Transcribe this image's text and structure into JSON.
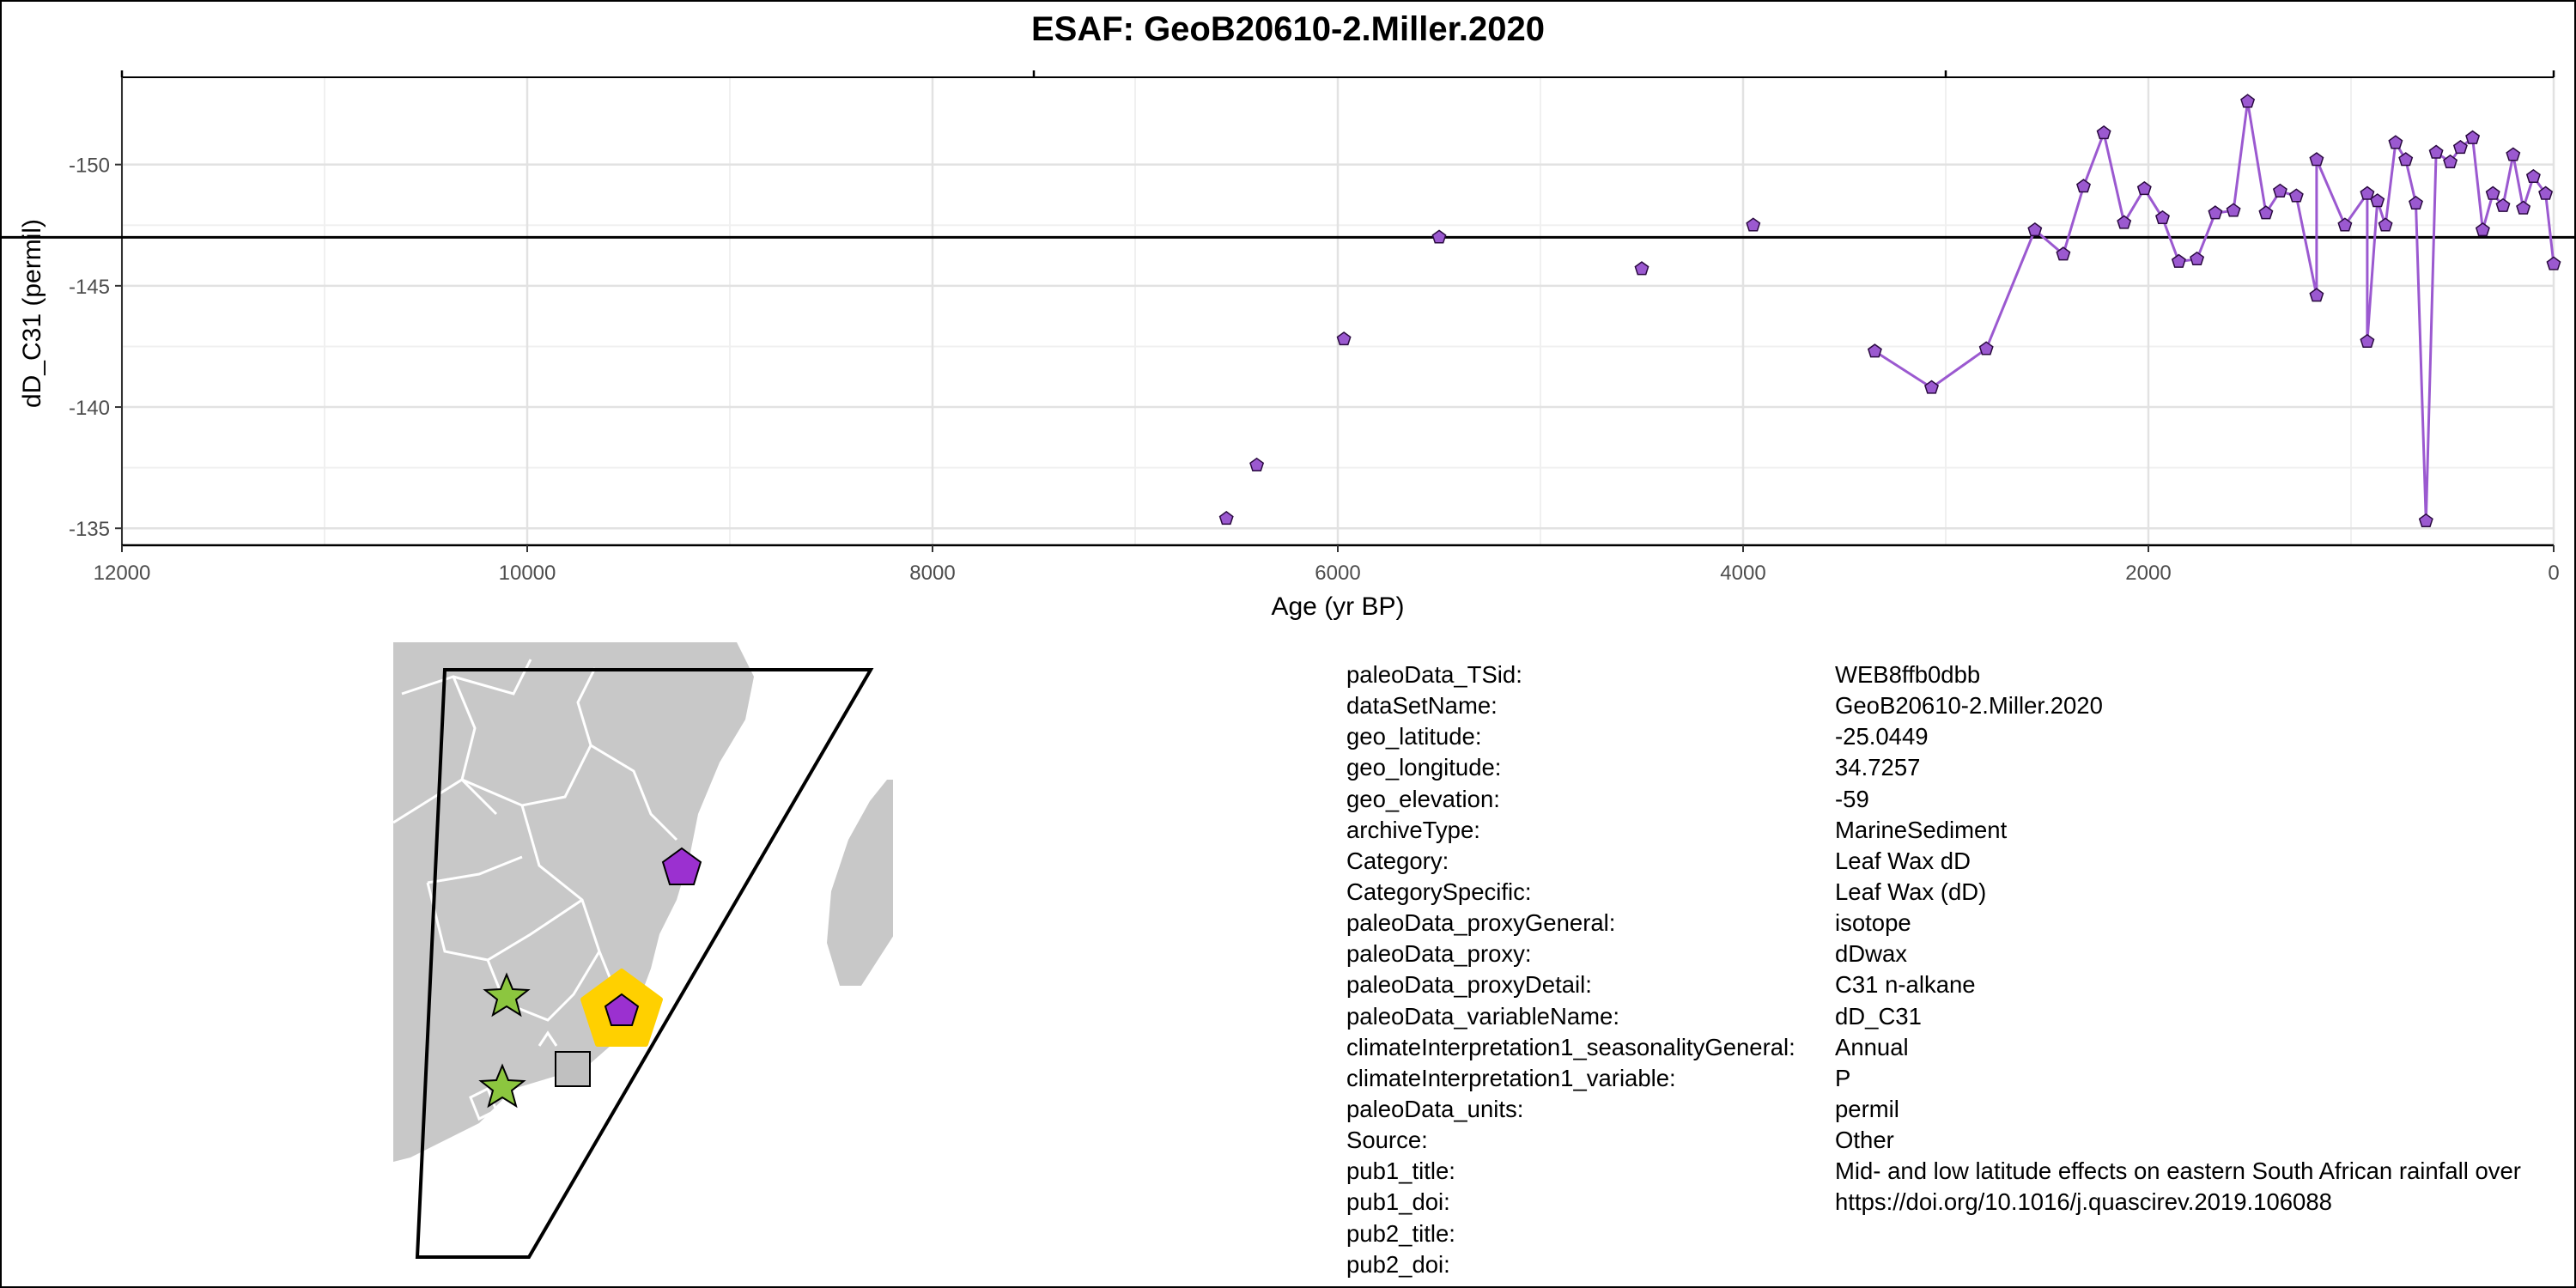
{
  "chart_data": {
    "type": "line",
    "title": "ESAF: GeoB20610-2.Miller.2020",
    "xlabel": "Age (yr BP)",
    "ylabel": "dD_C31 (permil)",
    "xlim": [
      12000,
      0
    ],
    "ylim": [
      -134.3,
      -153.6
    ],
    "x_reversed": true,
    "y_reversed": true,
    "x_ticks": [
      12000,
      10000,
      8000,
      6000,
      4000,
      2000,
      0
    ],
    "y_ticks": [
      -150,
      -145,
      -140,
      -135
    ],
    "reference_line": -147.0,
    "grid": true,
    "marker": "pentagon",
    "color": "#9b59d0",
    "series": [
      {
        "connected": false,
        "points": [
          {
            "x": 6550,
            "y": -135.4
          },
          {
            "x": 6400,
            "y": -137.6
          },
          {
            "x": 5970,
            "y": -142.8
          },
          {
            "x": 5500,
            "y": -147.0
          },
          {
            "x": 4500,
            "y": -145.7
          },
          {
            "x": 3950,
            "y": -147.5
          }
        ]
      },
      {
        "connected": true,
        "points": [
          {
            "x": 3350,
            "y": -142.3
          },
          {
            "x": 3070,
            "y": -140.8
          },
          {
            "x": 2800,
            "y": -142.4
          },
          {
            "x": 2560,
            "y": -147.3
          },
          {
            "x": 2420,
            "y": -146.3
          },
          {
            "x": 2320,
            "y": -149.1
          },
          {
            "x": 2220,
            "y": -151.3
          },
          {
            "x": 2120,
            "y": -147.6
          },
          {
            "x": 2020,
            "y": -149.0
          },
          {
            "x": 1930,
            "y": -147.8
          },
          {
            "x": 1850,
            "y": -146.0
          },
          {
            "x": 1760,
            "y": -146.1
          },
          {
            "x": 1670,
            "y": -148.0
          },
          {
            "x": 1580,
            "y": -148.1
          },
          {
            "x": 1510,
            "y": -152.6
          },
          {
            "x": 1420,
            "y": -148.0
          },
          {
            "x": 1350,
            "y": -148.9
          },
          {
            "x": 1270,
            "y": -148.7
          },
          {
            "x": 1170,
            "y": -144.6
          },
          {
            "x": 1170,
            "y": -150.2
          },
          {
            "x": 1030,
            "y": -147.5
          },
          {
            "x": 920,
            "y": -148.8
          },
          {
            "x": 920,
            "y": -142.7
          },
          {
            "x": 870,
            "y": -148.5
          },
          {
            "x": 830,
            "y": -147.5
          },
          {
            "x": 780,
            "y": -150.9
          },
          {
            "x": 730,
            "y": -150.2
          },
          {
            "x": 680,
            "y": -148.4
          },
          {
            "x": 630,
            "y": -135.3
          },
          {
            "x": 580,
            "y": -150.5
          },
          {
            "x": 510,
            "y": -150.1
          },
          {
            "x": 460,
            "y": -150.7
          },
          {
            "x": 400,
            "y": -151.1
          },
          {
            "x": 350,
            "y": -147.3
          },
          {
            "x": 300,
            "y": -148.8
          },
          {
            "x": 250,
            "y": -148.3
          },
          {
            "x": 200,
            "y": -150.4
          },
          {
            "x": 150,
            "y": -148.2
          },
          {
            "x": 100,
            "y": -149.5
          },
          {
            "x": 40,
            "y": -148.8
          },
          {
            "x": 0,
            "y": -145.9
          }
        ]
      }
    ]
  },
  "map": {
    "land_color": "#c8c8c8",
    "border_color": "#ffffff",
    "markers": [
      {
        "name": "green-star-marker",
        "shape": "star",
        "color": "#8cc63f"
      },
      {
        "name": "gray-square-marker",
        "shape": "square",
        "color": "#c0c0c0"
      },
      {
        "name": "purple-pentagon-marker",
        "shape": "pentagon",
        "color": "#9b30d0"
      },
      {
        "name": "highlighted-site-marker",
        "shape": "pentagon",
        "color": "#9b30d0",
        "halo": "#ffd000"
      }
    ]
  },
  "metadata": [
    {
      "key": "paleoData_TSid:",
      "value": "WEB8ffb0dbb"
    },
    {
      "key": "dataSetName:",
      "value": "GeoB20610-2.Miller.2020"
    },
    {
      "key": "geo_latitude:",
      "value": "-25.0449"
    },
    {
      "key": "geo_longitude:",
      "value": "34.7257"
    },
    {
      "key": "geo_elevation:",
      "value": "-59"
    },
    {
      "key": "archiveType:",
      "value": "MarineSediment"
    },
    {
      "key": "Category:",
      "value": "Leaf Wax dD"
    },
    {
      "key": "CategorySpecific:",
      "value": "Leaf Wax (dD)"
    },
    {
      "key": "paleoData_proxyGeneral:",
      "value": "isotope"
    },
    {
      "key": "paleoData_proxy:",
      "value": "dDwax"
    },
    {
      "key": "paleoData_proxyDetail:",
      "value": "C31 n-alkane"
    },
    {
      "key": "paleoData_variableName:",
      "value": "dD_C31"
    },
    {
      "key": "climateInterpretation1_seasonalityGeneral:",
      "value": "Annual"
    },
    {
      "key": "climateInterpretation1_variable:",
      "value": "P"
    },
    {
      "key": "paleoData_units:",
      "value": "permil"
    },
    {
      "key": "Source:",
      "value": "Other"
    },
    {
      "key": "pub1_title:",
      "value": "Mid- and low latitude effects on eastern South African rainfall over"
    },
    {
      "key": "pub1_doi:",
      "value": "https://doi.org/10.1016/j.quascirev.2019.106088"
    },
    {
      "key": "pub2_title:",
      "value": ""
    },
    {
      "key": "pub2_doi:",
      "value": ""
    }
  ]
}
